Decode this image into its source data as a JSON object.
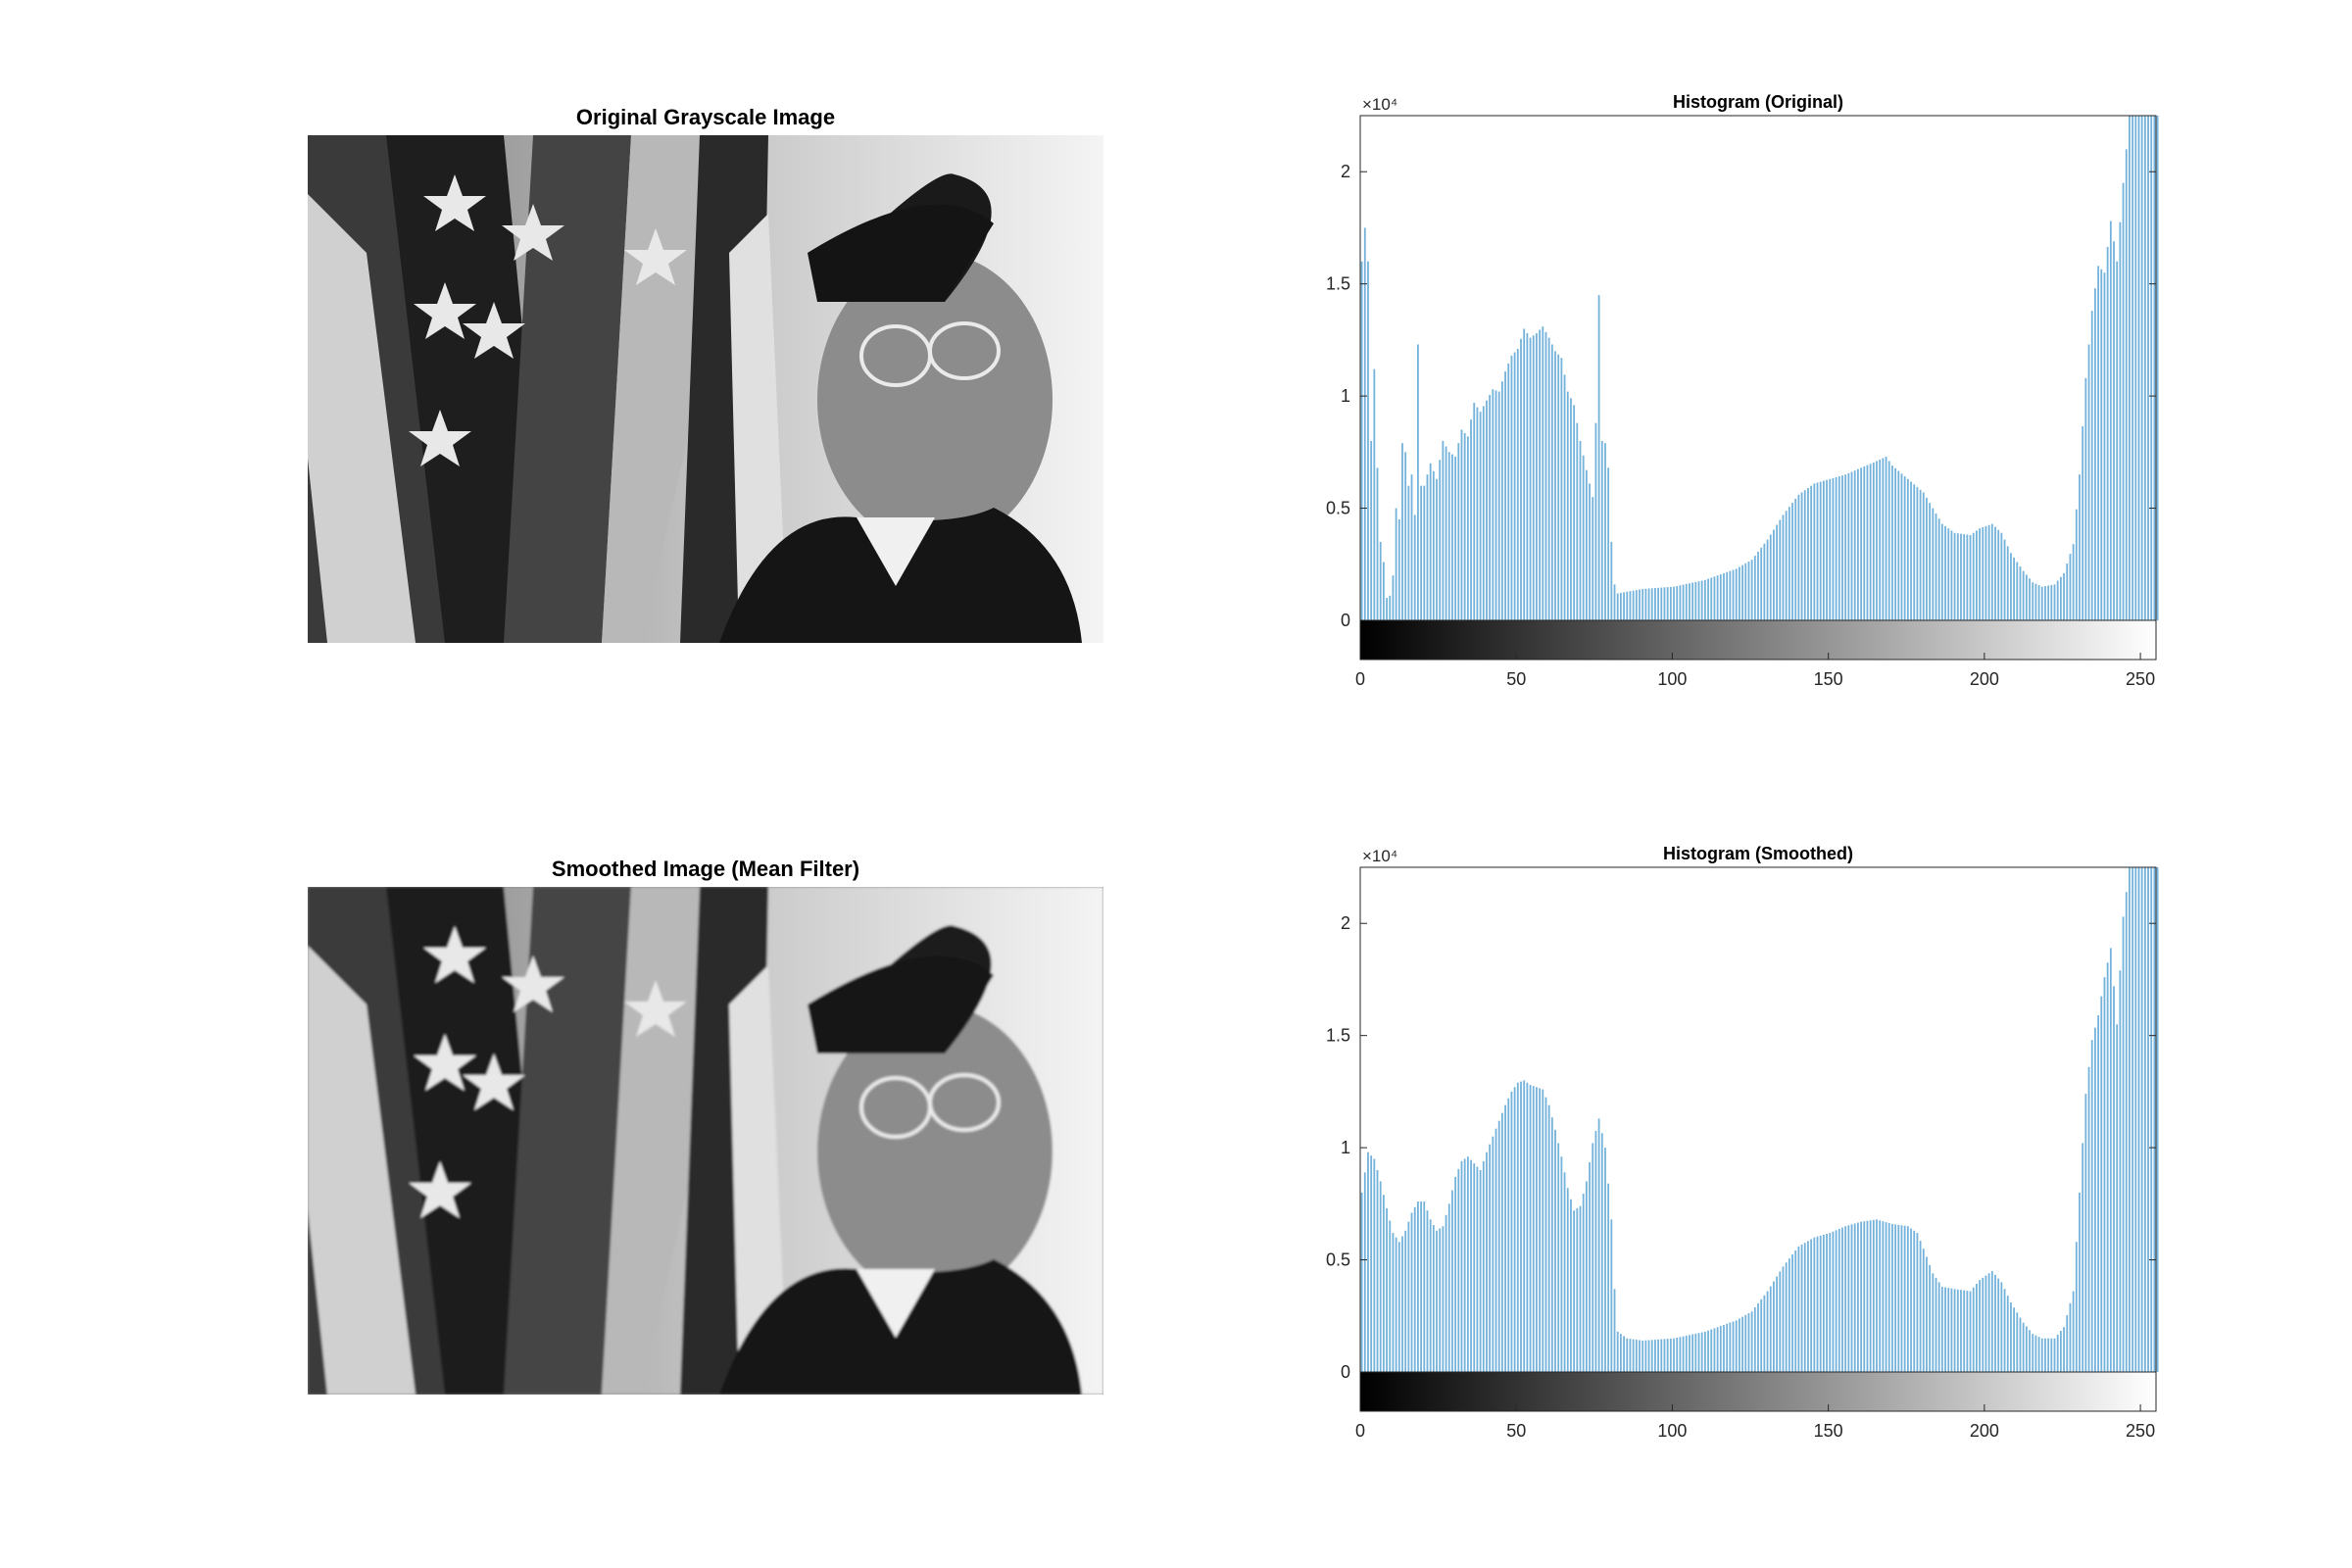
{
  "figure": {
    "image_titles": [
      "Original Grayscale Image",
      "Smoothed Image (Mean Filter)"
    ]
  },
  "chart_data": [
    {
      "type": "bar",
      "title": "Histogram (Original)",
      "xlabel": "",
      "ylabel": "",
      "xlim": [
        0,
        255
      ],
      "ylim": [
        0,
        22500
      ],
      "y_exponent_label": "×10⁴",
      "x_ticks": [
        "0",
        "50",
        "100",
        "150",
        "200",
        "250"
      ],
      "y_ticks": [
        "0",
        "0.5",
        "1",
        "1.5",
        "2"
      ],
      "bar_color": "#0072bd",
      "colorbar": "gray 0-255",
      "profile": [
        [
          0,
          16000
        ],
        [
          1,
          17500
        ],
        [
          2,
          16000
        ],
        [
          3,
          8000
        ],
        [
          4,
          11200
        ],
        [
          5,
          6800
        ],
        [
          6,
          3500
        ],
        [
          7,
          2600
        ],
        [
          8,
          1000
        ],
        [
          9,
          1100
        ],
        [
          10,
          2000
        ],
        [
          11,
          5000
        ],
        [
          12,
          4500
        ],
        [
          13,
          7900
        ],
        [
          14,
          7500
        ],
        [
          15,
          6000
        ],
        [
          16,
          6500
        ],
        [
          17,
          4700
        ],
        [
          18,
          12300
        ],
        [
          19,
          6000
        ],
        [
          20,
          6000
        ],
        [
          22,
          7000
        ],
        [
          24,
          6300
        ],
        [
          26,
          8000
        ],
        [
          28,
          7500
        ],
        [
          30,
          7300
        ],
        [
          32,
          8500
        ],
        [
          34,
          8200
        ],
        [
          36,
          9700
        ],
        [
          38,
          9300
        ],
        [
          40,
          9800
        ],
        [
          42,
          10300
        ],
        [
          44,
          10200
        ],
        [
          46,
          11100
        ],
        [
          48,
          11800
        ],
        [
          50,
          12100
        ],
        [
          52,
          13000
        ],
        [
          54,
          12600
        ],
        [
          56,
          12800
        ],
        [
          58,
          13100
        ],
        [
          60,
          12600
        ],
        [
          62,
          12000
        ],
        [
          64,
          11700
        ],
        [
          66,
          10200
        ],
        [
          68,
          9600
        ],
        [
          70,
          8000
        ],
        [
          72,
          6700
        ],
        [
          74,
          5500
        ],
        [
          75,
          8800
        ],
        [
          76,
          14500
        ],
        [
          77,
          8000
        ],
        [
          78,
          7900
        ],
        [
          79,
          6800
        ],
        [
          80,
          3500
        ],
        [
          81,
          1600
        ],
        [
          82,
          1200
        ],
        [
          90,
          1400
        ],
        [
          100,
          1500
        ],
        [
          110,
          1800
        ],
        [
          120,
          2300
        ],
        [
          125,
          2700
        ],
        [
          130,
          3600
        ],
        [
          135,
          4700
        ],
        [
          140,
          5600
        ],
        [
          145,
          6100
        ],
        [
          150,
          6300
        ],
        [
          155,
          6500
        ],
        [
          160,
          6800
        ],
        [
          165,
          7100
        ],
        [
          168,
          7300
        ],
        [
          170,
          6900
        ],
        [
          175,
          6300
        ],
        [
          180,
          5700
        ],
        [
          183,
          5000
        ],
        [
          186,
          4300
        ],
        [
          190,
          3900
        ],
        [
          195,
          3800
        ],
        [
          198,
          4100
        ],
        [
          202,
          4300
        ],
        [
          205,
          3900
        ],
        [
          208,
          3000
        ],
        [
          212,
          2200
        ],
        [
          215,
          1700
        ],
        [
          218,
          1500
        ],
        [
          222,
          1600
        ],
        [
          225,
          2100
        ],
        [
          228,
          3400
        ],
        [
          230,
          6500
        ],
        [
          232,
          10800
        ],
        [
          234,
          13800
        ],
        [
          236,
          15800
        ],
        [
          238,
          15500
        ],
        [
          240,
          17800
        ],
        [
          242,
          16000
        ],
        [
          244,
          19500
        ],
        [
          246,
          22500
        ],
        [
          250,
          22500
        ],
        [
          255,
          22500
        ]
      ]
    },
    {
      "type": "bar",
      "title": "Histogram (Smoothed)",
      "xlabel": "",
      "ylabel": "",
      "xlim": [
        0,
        255
      ],
      "ylim": [
        0,
        22500
      ],
      "y_exponent_label": "×10⁴",
      "x_ticks": [
        "0",
        "50",
        "100",
        "150",
        "200",
        "250"
      ],
      "y_ticks": [
        "0",
        "0.5",
        "1",
        "1.5",
        "2"
      ],
      "bar_color": "#0072bd",
      "colorbar": "gray 0-255",
      "profile": [
        [
          0,
          8000
        ],
        [
          2,
          9800
        ],
        [
          4,
          9500
        ],
        [
          6,
          8500
        ],
        [
          8,
          7300
        ],
        [
          10,
          6200
        ],
        [
          12,
          5800
        ],
        [
          14,
          6300
        ],
        [
          16,
          7100
        ],
        [
          18,
          7600
        ],
        [
          20,
          7600
        ],
        [
          22,
          6800
        ],
        [
          24,
          6300
        ],
        [
          26,
          6500
        ],
        [
          28,
          7500
        ],
        [
          30,
          8700
        ],
        [
          32,
          9400
        ],
        [
          34,
          9600
        ],
        [
          36,
          9300
        ],
        [
          38,
          9000
        ],
        [
          40,
          9800
        ],
        [
          42,
          10500
        ],
        [
          44,
          11200
        ],
        [
          46,
          11900
        ],
        [
          48,
          12500
        ],
        [
          50,
          12900
        ],
        [
          52,
          13000
        ],
        [
          54,
          12800
        ],
        [
          56,
          12700
        ],
        [
          58,
          12600
        ],
        [
          60,
          11900
        ],
        [
          62,
          10800
        ],
        [
          64,
          9600
        ],
        [
          66,
          8200
        ],
        [
          68,
          7200
        ],
        [
          70,
          7400
        ],
        [
          72,
          8500
        ],
        [
          74,
          10200
        ],
        [
          76,
          11300
        ],
        [
          78,
          10000
        ],
        [
          80,
          6800
        ],
        [
          81,
          3700
        ],
        [
          82,
          1800
        ],
        [
          85,
          1500
        ],
        [
          90,
          1400
        ],
        [
          100,
          1500
        ],
        [
          110,
          1800
        ],
        [
          120,
          2300
        ],
        [
          125,
          2700
        ],
        [
          130,
          3600
        ],
        [
          135,
          4700
        ],
        [
          140,
          5600
        ],
        [
          145,
          6000
        ],
        [
          150,
          6200
        ],
        [
          155,
          6500
        ],
        [
          160,
          6700
        ],
        [
          165,
          6800
        ],
        [
          170,
          6600
        ],
        [
          175,
          6500
        ],
        [
          178,
          6200
        ],
        [
          180,
          5500
        ],
        [
          183,
          4400
        ],
        [
          186,
          3800
        ],
        [
          190,
          3700
        ],
        [
          195,
          3600
        ],
        [
          198,
          4100
        ],
        [
          202,
          4500
        ],
        [
          205,
          4000
        ],
        [
          208,
          3100
        ],
        [
          212,
          2200
        ],
        [
          215,
          1700
        ],
        [
          218,
          1500
        ],
        [
          222,
          1500
        ],
        [
          225,
          2000
        ],
        [
          228,
          3600
        ],
        [
          230,
          8000
        ],
        [
          232,
          12400
        ],
        [
          234,
          14800
        ],
        [
          236,
          15900
        ],
        [
          238,
          17600
        ],
        [
          240,
          18900
        ],
        [
          242,
          15500
        ],
        [
          244,
          20300
        ],
        [
          246,
          22500
        ],
        [
          250,
          22500
        ],
        [
          255,
          22500
        ]
      ]
    }
  ]
}
